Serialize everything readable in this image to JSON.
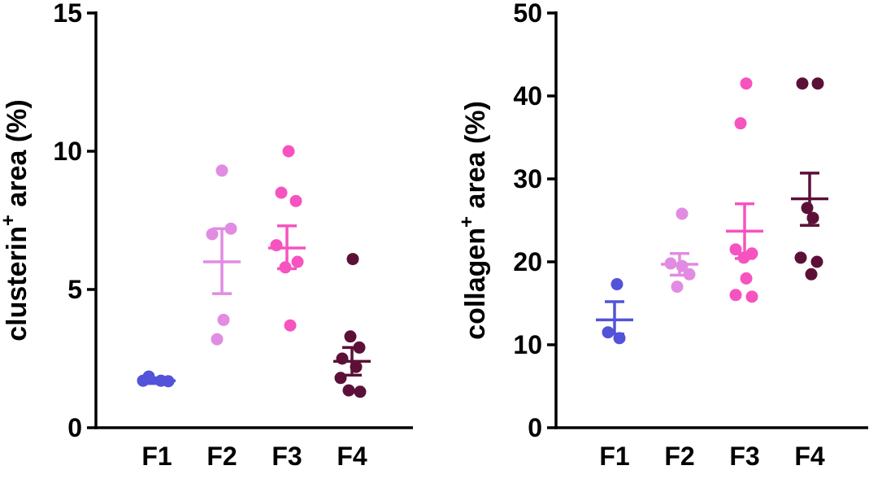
{
  "figure": {
    "background": "#ffffff",
    "description": "Two-panel scatter dot plot with mean and SEM error bars across four fractions F1-F4"
  },
  "chart_data": [
    {
      "type": "scatter",
      "title": "",
      "xlabel": "",
      "ylabel": "clusterin+ area (%)",
      "ylabel_parts": [
        {
          "t": "clusterin",
          "sup": false
        },
        {
          "t": "+",
          "sup": true
        },
        {
          "t": " area (%)",
          "sup": false
        }
      ],
      "ylim": [
        0,
        15
      ],
      "yticks": [
        0,
        5,
        10,
        15
      ],
      "categories": [
        "F1",
        "F2",
        "F3",
        "F4"
      ],
      "grid": false,
      "legend": "none",
      "groups": [
        {
          "label": "F1",
          "color": "#5253d8",
          "mean": 1.7,
          "err_low": 1.6,
          "err_high": 1.8,
          "points": [
            {
              "v": 1.85,
              "dx": -10
            },
            {
              "v": 1.7,
              "dx": -17
            },
            {
              "v": 1.7,
              "dx": 5
            },
            {
              "v": 1.68,
              "dx": 14
            }
          ]
        },
        {
          "label": "F2",
          "color": "#e18ce2",
          "mean": 6.0,
          "err_low": 4.85,
          "err_high": 7.2,
          "points": [
            {
              "v": 9.3,
              "dx": 0
            },
            {
              "v": 7.2,
              "dx": 11
            },
            {
              "v": 7.0,
              "dx": -12
            },
            {
              "v": 3.9,
              "dx": 2
            },
            {
              "v": 3.2,
              "dx": -6
            }
          ]
        },
        {
          "label": "F3",
          "color": "#f653c0",
          "mean": 6.5,
          "err_low": 5.75,
          "err_high": 7.3,
          "points": [
            {
              "v": 10.0,
              "dx": 2
            },
            {
              "v": 8.5,
              "dx": -7
            },
            {
              "v": 8.2,
              "dx": 11
            },
            {
              "v": 6.6,
              "dx": -13
            },
            {
              "v": 6.0,
              "dx": 13
            },
            {
              "v": 5.8,
              "dx": -2
            },
            {
              "v": 3.7,
              "dx": 4
            }
          ]
        },
        {
          "label": "F4",
          "color": "#5c1038",
          "mean": 2.4,
          "err_low": 1.9,
          "err_high": 2.9,
          "points": [
            {
              "v": 6.1,
              "dx": 1
            },
            {
              "v": 3.3,
              "dx": -2
            },
            {
              "v": 2.9,
              "dx": 9
            },
            {
              "v": 2.5,
              "dx": -12
            },
            {
              "v": 2.2,
              "dx": 5
            },
            {
              "v": 1.8,
              "dx": -14
            },
            {
              "v": 1.35,
              "dx": -4
            },
            {
              "v": 1.3,
              "dx": 10
            }
          ]
        }
      ]
    },
    {
      "type": "scatter",
      "title": "",
      "xlabel": "",
      "ylabel": "collagen+ area (%)",
      "ylabel_parts": [
        {
          "t": "collagen",
          "sup": false
        },
        {
          "t": "+",
          "sup": true
        },
        {
          "t": " area (%)",
          "sup": false
        }
      ],
      "ylim": [
        0,
        50
      ],
      "yticks": [
        0,
        10,
        20,
        30,
        40,
        50
      ],
      "categories": [
        "F1",
        "F2",
        "F3",
        "F4"
      ],
      "grid": false,
      "legend": "none",
      "groups": [
        {
          "label": "F1",
          "color": "#5253d8",
          "mean": 13.0,
          "err_low": 11.3,
          "err_high": 15.2,
          "points": [
            {
              "v": 17.3,
              "dx": 3
            },
            {
              "v": 11.5,
              "dx": -8
            },
            {
              "v": 10.8,
              "dx": 6
            }
          ]
        },
        {
          "label": "F2",
          "color": "#e18ce2",
          "mean": 19.7,
          "err_low": 18.4,
          "err_high": 21.0,
          "points": [
            {
              "v": 25.8,
              "dx": 3
            },
            {
              "v": 19.8,
              "dx": -11
            },
            {
              "v": 19.5,
              "dx": 3
            },
            {
              "v": 18.5,
              "dx": 12
            },
            {
              "v": 17.0,
              "dx": -3
            }
          ]
        },
        {
          "label": "F3",
          "color": "#f653c0",
          "mean": 23.7,
          "err_low": 20.4,
          "err_high": 27.0,
          "points": [
            {
              "v": 41.5,
              "dx": 2
            },
            {
              "v": 36.7,
              "dx": -5
            },
            {
              "v": 21.5,
              "dx": -11
            },
            {
              "v": 21.0,
              "dx": 9
            },
            {
              "v": 20.5,
              "dx": -1
            },
            {
              "v": 18.0,
              "dx": 2
            },
            {
              "v": 16.0,
              "dx": -11
            },
            {
              "v": 15.8,
              "dx": 9
            }
          ]
        },
        {
          "label": "F4",
          "color": "#5c1038",
          "mean": 27.6,
          "err_low": 24.4,
          "err_high": 30.7,
          "points": [
            {
              "v": 41.5,
              "dx": -9
            },
            {
              "v": 41.5,
              "dx": 10
            },
            {
              "v": 26.5,
              "dx": -3
            },
            {
              "v": 25.3,
              "dx": 4
            },
            {
              "v": 20.5,
              "dx": -11
            },
            {
              "v": 20.0,
              "dx": 9
            },
            {
              "v": 18.5,
              "dx": 2
            }
          ]
        }
      ]
    }
  ]
}
